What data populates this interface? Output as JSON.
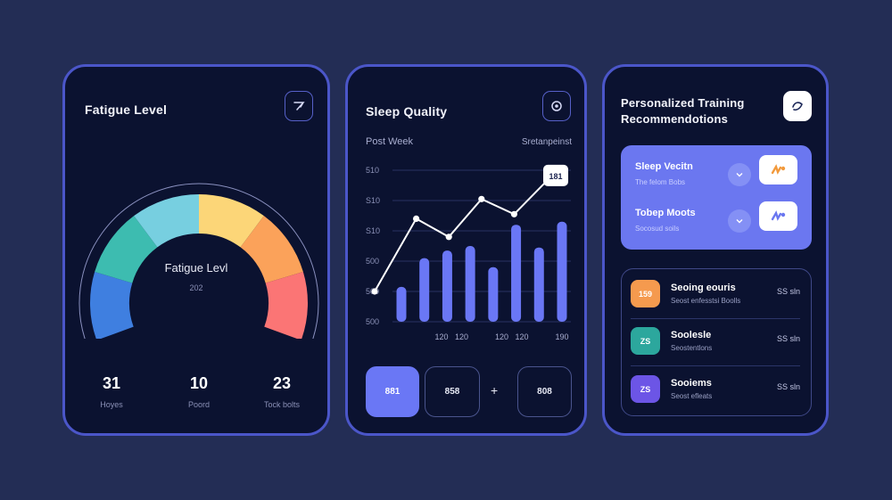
{
  "fatigue": {
    "title": "Fatigue Level",
    "icon": "send-arrow-icon",
    "gauge_label": "Fatigue Levl",
    "gauge_value": "202",
    "gauge_segments": [
      "#3f7fe0",
      "#3dbcb0",
      "#77cfe0",
      "#fcd678",
      "#fba25a",
      "#fb7575"
    ],
    "stats": [
      {
        "value": "31",
        "label": "Hoyes"
      },
      {
        "value": "10",
        "label": "Poord"
      },
      {
        "value": "23",
        "label": "Tock bolts"
      }
    ]
  },
  "sleep": {
    "title": "Sleep Quality",
    "icon": "target-icon",
    "chart_data": {
      "type": "bar",
      "title": "",
      "left_label": "Post Week",
      "right_label": "Sretanpeinst",
      "y_tick_labels": [
        "510",
        "S10",
        "S10",
        "500",
        "500",
        "500"
      ],
      "x_tick_labels": [
        "",
        "",
        "120",
        "120",
        "",
        "120",
        "120",
        "",
        "190"
      ],
      "bars": [
        0.23,
        0.42,
        0.47,
        0.5,
        0.36,
        0.64,
        0.49,
        0.66
      ],
      "line": [
        0.2,
        0.68,
        0.56,
        0.81,
        0.71,
        0.93
      ],
      "callout": "181",
      "grid": true
    },
    "buttons": [
      {
        "label": "881",
        "active": true
      },
      {
        "label": "858",
        "active": false
      },
      {
        "label": "808",
        "active": false
      }
    ],
    "plus": "+"
  },
  "training": {
    "title": "Personalized Training Recommendotions",
    "icon": "heart-swoosh-icon",
    "recommendations": [
      {
        "title": "Sleep Vecitn",
        "subtitle": "The felom Bobs"
      },
      {
        "title": "Tobep Moots",
        "subtitle": "Socosud soils"
      }
    ],
    "items": [
      {
        "badge": "159",
        "color": "#f59a4e",
        "title": "Seoing eouris",
        "subtitle": "Seost enfesstsi Boolls",
        "meta": "SS sln"
      },
      {
        "badge": "ZS",
        "color": "#2ca79d",
        "title": "Soolesle",
        "subtitle": "Seostentlons",
        "meta": "SS sln"
      },
      {
        "badge": "ZS",
        "color": "#6c55e6",
        "title": "Sooiems",
        "subtitle": "Seost efleats",
        "meta": "SS sln"
      }
    ]
  }
}
